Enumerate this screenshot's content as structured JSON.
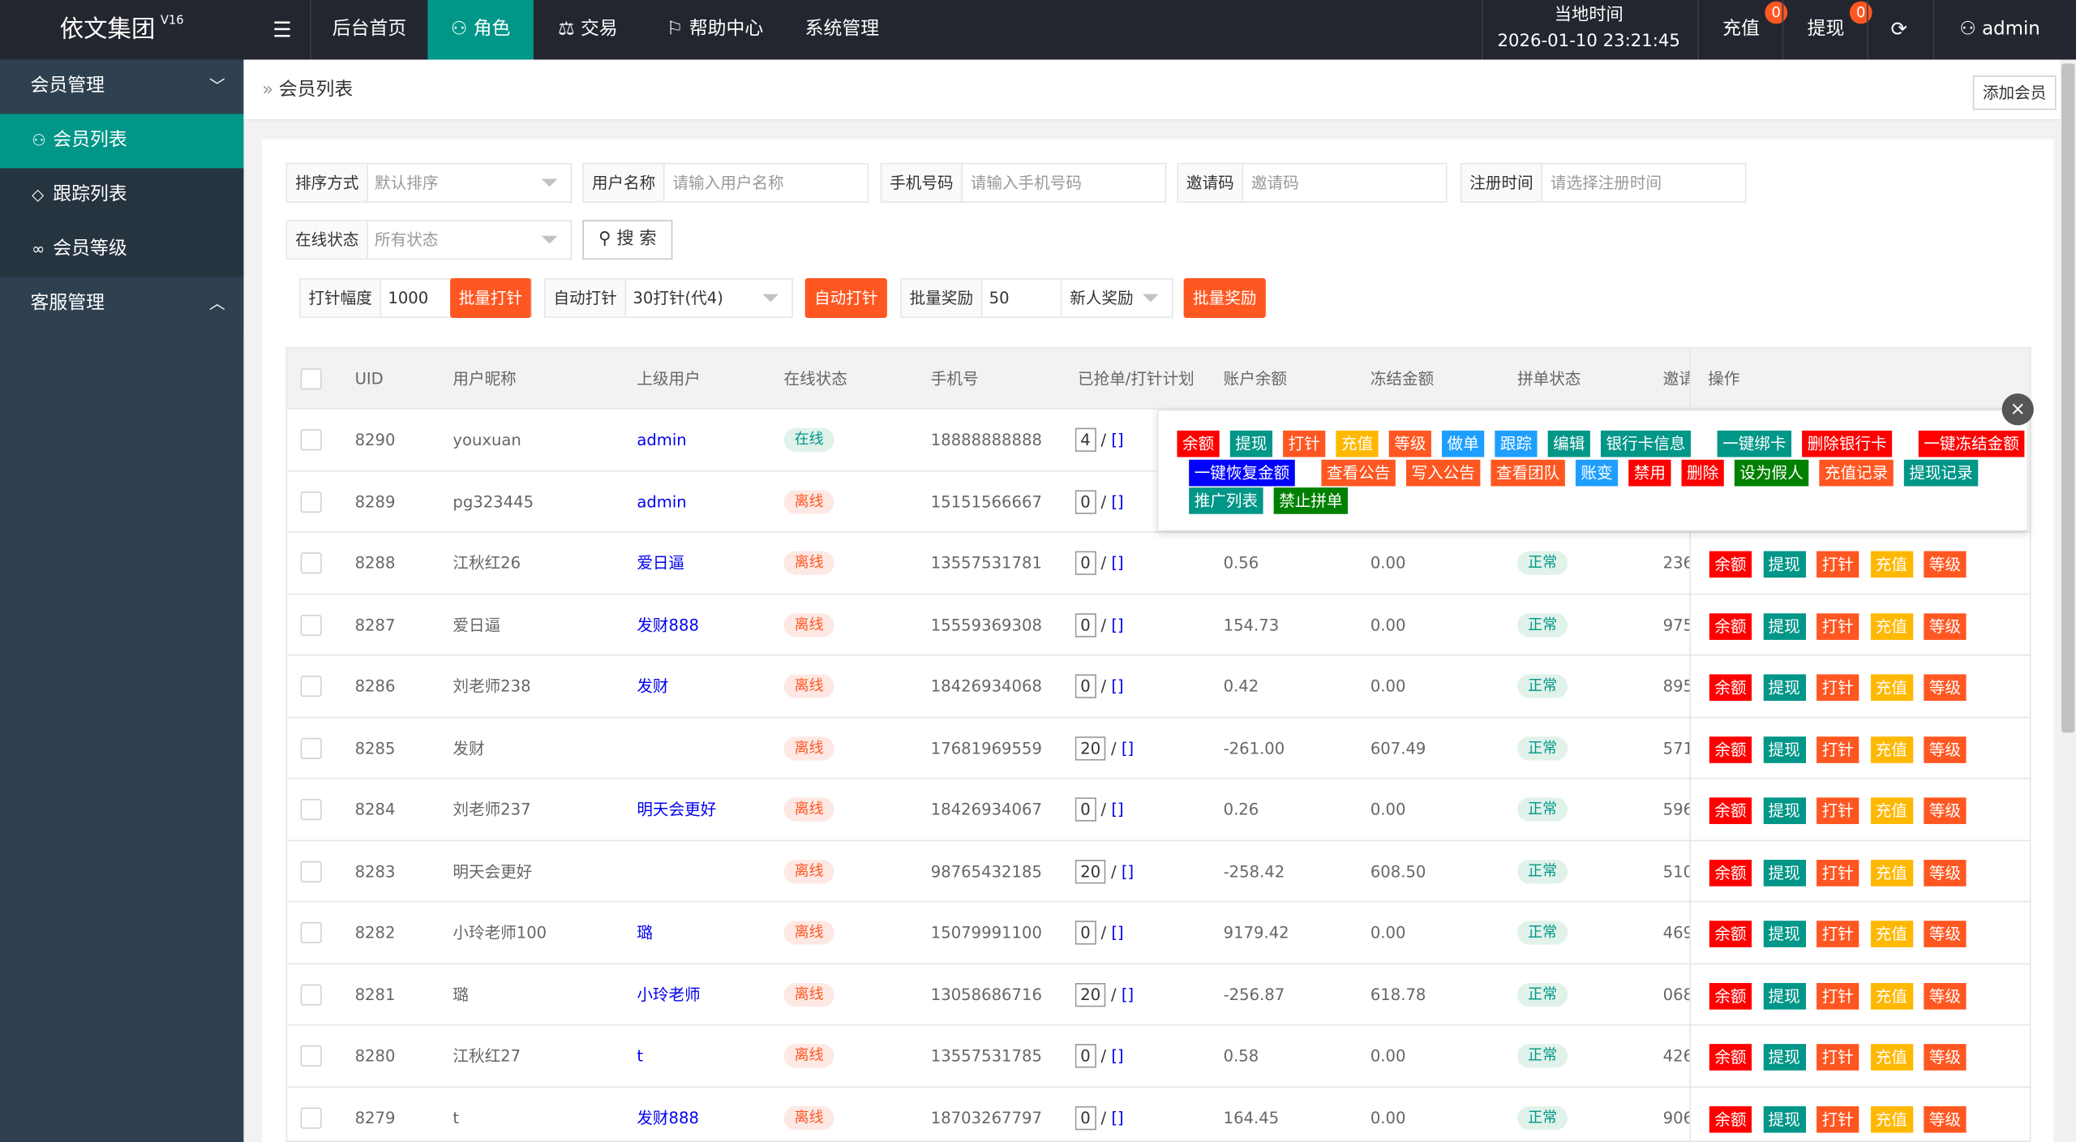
{
  "header": {
    "logo": "依文集团",
    "version": "V16",
    "nav": [
      "后台首页",
      "角色",
      "交易",
      "帮助中心",
      "系统管理"
    ],
    "nav_icons": [
      "",
      "user-icon",
      "scale-icon",
      "flag-icon",
      ""
    ],
    "active_nav": "角色",
    "time_label": "当地时间",
    "time_value": "2026-01-10 23:21:45",
    "recharge": "充值",
    "recharge_badge": "0",
    "withdraw": "提现",
    "withdraw_badge": "0",
    "user": "admin"
  },
  "sidebar": {
    "groups": [
      {
        "label": "会员管理",
        "items": [
          "会员列表",
          "跟踪列表",
          "会员等级"
        ]
      },
      {
        "label": "客服管理",
        "items": []
      }
    ],
    "active": "会员列表"
  },
  "breadcrumb": "会员列表",
  "add_button": "添加会员",
  "filters": {
    "sort_label": "排序方式",
    "sort_value": "默认排序",
    "username_label": "用户名称",
    "username_placeholder": "请输入用户名称",
    "phone_label": "手机号码",
    "phone_placeholder": "请输入手机号码",
    "invite_label": "邀请码",
    "invite_placeholder": "邀请码",
    "regtime_label": "注册时间",
    "regtime_placeholder": "请选择注册时间",
    "online_label": "在线状态",
    "online_value": "所有状态",
    "search": "搜 索"
  },
  "batch": {
    "clock_range_label": "打针幅度",
    "clock_range_value": "1000",
    "batch_clock": "批量打针",
    "auto_clock_label": "自动打针",
    "auto_clock_value": "30打针(代4)",
    "auto_clock_btn": "自动打针",
    "batch_reward_label": "批量奖励",
    "batch_reward_value": "50",
    "reward_type": "新人奖励",
    "batch_reward_btn": "批量奖励"
  },
  "table": {
    "columns": [
      "UID",
      "用户昵称",
      "上级用户",
      "在线状态",
      "手机号",
      "已抢单/打针计划",
      "账户余额",
      "冻结金额",
      "拼单状态",
      "邀请",
      "操作"
    ],
    "rows": [
      {
        "uid": "8290",
        "nick": "youxuan",
        "parent": "admin",
        "online": "在线",
        "phone": "18888888888",
        "grab": "4",
        "balance": "",
        "frozen": "",
        "pin": "",
        "invite": ""
      },
      {
        "uid": "8289",
        "nick": "pg323445",
        "parent": "admin",
        "online": "离线",
        "phone": "15151566667",
        "grab": "0",
        "balance": "",
        "frozen": "",
        "pin": "",
        "invite": ""
      },
      {
        "uid": "8288",
        "nick": "江秋红26",
        "parent": "爱日逼",
        "online": "离线",
        "phone": "13557531781",
        "grab": "0",
        "balance": "0.56",
        "frozen": "0.00",
        "pin": "正常",
        "invite": "236"
      },
      {
        "uid": "8287",
        "nick": "爱日逼",
        "parent": "发财888",
        "online": "离线",
        "phone": "15559369308",
        "grab": "0",
        "balance": "154.73",
        "frozen": "0.00",
        "pin": "正常",
        "invite": "975"
      },
      {
        "uid": "8286",
        "nick": "刘老师238",
        "parent": "发财",
        "online": "离线",
        "phone": "18426934068",
        "grab": "0",
        "balance": "0.42",
        "frozen": "0.00",
        "pin": "正常",
        "invite": "895"
      },
      {
        "uid": "8285",
        "nick": "发财",
        "parent": "",
        "online": "离线",
        "phone": "17681969559",
        "grab": "20",
        "balance": "-261.00",
        "frozen": "607.49",
        "pin": "正常",
        "invite": "571"
      },
      {
        "uid": "8284",
        "nick": "刘老师237",
        "parent": "明天会更好",
        "online": "离线",
        "phone": "18426934067",
        "grab": "0",
        "balance": "0.26",
        "frozen": "0.00",
        "pin": "正常",
        "invite": "596"
      },
      {
        "uid": "8283",
        "nick": "明天会更好",
        "parent": "",
        "online": "离线",
        "phone": "98765432185",
        "grab": "20",
        "balance": "-258.42",
        "frozen": "608.50",
        "pin": "正常",
        "invite": "510"
      },
      {
        "uid": "8282",
        "nick": "小玲老师100",
        "parent": "璐",
        "online": "离线",
        "phone": "15079991100",
        "grab": "0",
        "balance": "9179.42",
        "frozen": "0.00",
        "pin": "正常",
        "invite": "469"
      },
      {
        "uid": "8281",
        "nick": "璐",
        "parent": "小玲老师",
        "online": "离线",
        "phone": "13058686716",
        "grab": "20",
        "balance": "-256.87",
        "frozen": "618.78",
        "pin": "正常",
        "invite": "068"
      },
      {
        "uid": "8280",
        "nick": "江秋红27",
        "parent": "t",
        "online": "离线",
        "phone": "13557531785",
        "grab": "0",
        "balance": "0.58",
        "frozen": "0.00",
        "pin": "正常",
        "invite": "426"
      },
      {
        "uid": "8279",
        "nick": "t",
        "parent": "发财888",
        "online": "离线",
        "phone": "18703267797",
        "grab": "0",
        "balance": "164.45",
        "frozen": "0.00",
        "pin": "正常",
        "invite": "906"
      }
    ],
    "row_actions": [
      {
        "label": "余额",
        "color": "#ff0000"
      },
      {
        "label": "提现",
        "color": "#009688"
      },
      {
        "label": "打针",
        "color": "#ff5722"
      },
      {
        "label": "充值",
        "color": "#ffb800"
      },
      {
        "label": "等级",
        "color": "#ff5722"
      }
    ]
  },
  "popup_actions": [
    [
      {
        "label": "余额",
        "color": "#ff0000"
      },
      {
        "label": "提现",
        "color": "#009688"
      },
      {
        "label": "打针",
        "color": "#ff5722"
      },
      {
        "label": "充值",
        "color": "#ffb800"
      },
      {
        "label": "等级",
        "color": "#ff5722"
      },
      {
        "label": "做单",
        "color": "#1e9fff"
      },
      {
        "label": "跟踪",
        "color": "#1e9fff"
      },
      {
        "label": "编辑",
        "color": "#009688"
      },
      {
        "label": "银行卡信息",
        "color": "#009688"
      },
      {
        "label": "一键绑卡",
        "color": "#009688"
      },
      {
        "label": "删除银行卡",
        "color": "#ff0000"
      },
      {
        "label": "一键冻结金额",
        "color": "#ff0000"
      }
    ],
    [
      {
        "label": "一键恢复金额",
        "color": "#0000ff"
      },
      {
        "label": "查看公告",
        "color": "#ff5722"
      },
      {
        "label": "写入公告",
        "color": "#ff5722"
      },
      {
        "label": "查看团队",
        "color": "#ff5722"
      },
      {
        "label": "账变",
        "color": "#1e9fff"
      },
      {
        "label": "禁用",
        "color": "#ff0000"
      },
      {
        "label": "删除",
        "color": "#ff0000"
      },
      {
        "label": "设为假人",
        "color": "#008000"
      },
      {
        "label": "充值记录",
        "color": "#ff5722"
      },
      {
        "label": "提现记录",
        "color": "#009688"
      }
    ],
    [
      {
        "label": "推广列表",
        "color": "#009688"
      },
      {
        "label": "禁止拼单",
        "color": "#008000"
      }
    ]
  ],
  "popup_close": "×"
}
